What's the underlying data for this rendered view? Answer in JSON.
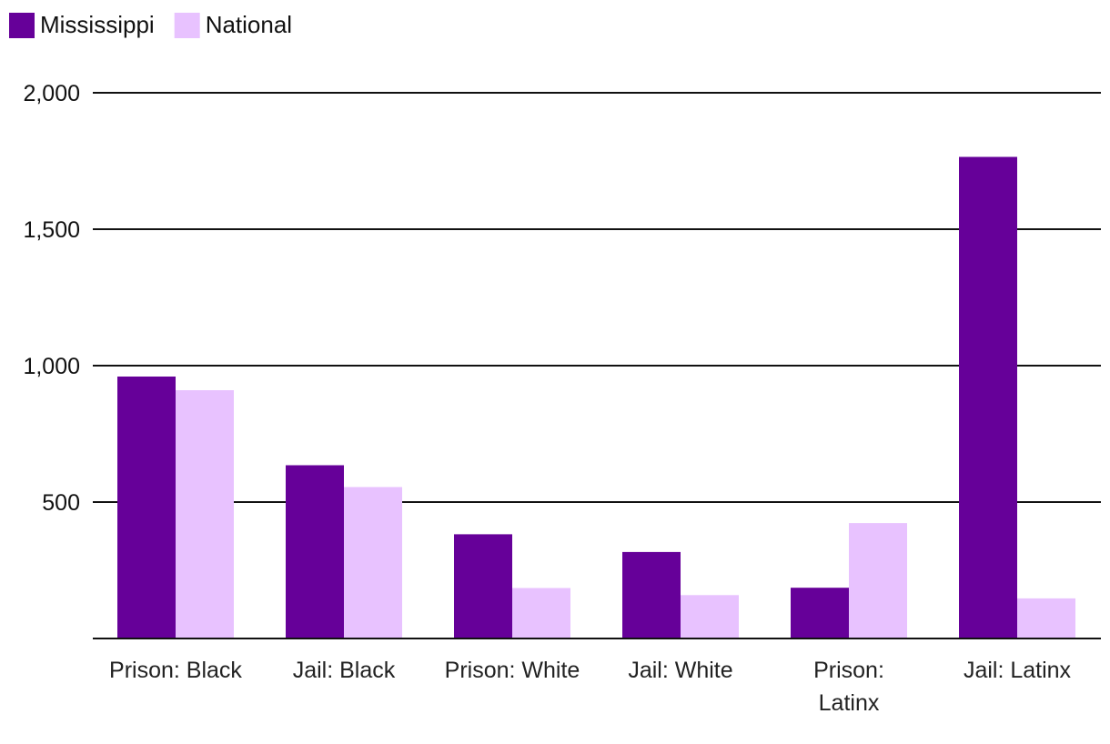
{
  "chart_data": {
    "type": "bar",
    "title": "",
    "xlabel": "",
    "ylabel": "",
    "categories": [
      [
        "Prison: Black"
      ],
      [
        "Jail: Black"
      ],
      [
        "Prison: White"
      ],
      [
        "Jail: White"
      ],
      [
        "Prison:",
        "Latinx"
      ],
      [
        "Jail: Latinx"
      ]
    ],
    "series": [
      {
        "name": "Mississippi",
        "color": "#660099",
        "values": [
          960,
          635,
          382,
          317,
          186,
          1765
        ]
      },
      {
        "name": "National",
        "color": "#e8c2ff",
        "values": [
          910,
          555,
          185,
          159,
          423,
          147
        ]
      }
    ],
    "ylim": [
      0,
      2000
    ],
    "yticks": [
      {
        "value": 500,
        "label": "500"
      },
      {
        "value": 1000,
        "label": "1,000"
      },
      {
        "value": 1500,
        "label": "1,500"
      },
      {
        "value": 2000,
        "label": "2,000"
      }
    ],
    "grid": true,
    "legend": "top-left"
  }
}
